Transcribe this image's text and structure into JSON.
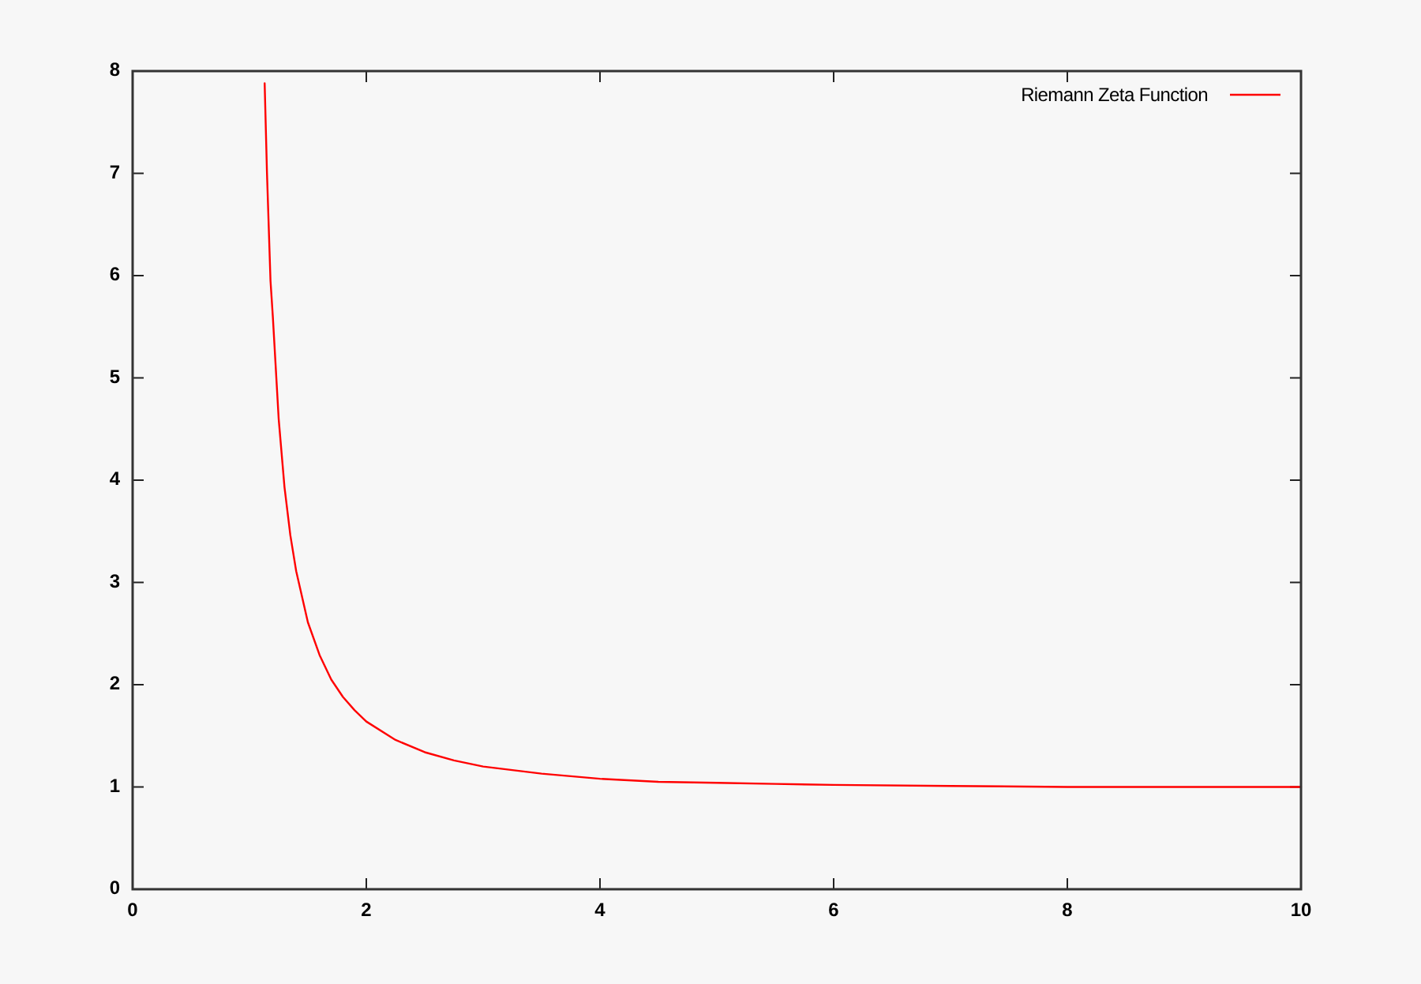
{
  "chart_data": {
    "type": "line",
    "x": [
      1.13,
      1.15,
      1.18,
      1.2,
      1.25,
      1.3,
      1.35,
      1.4,
      1.5,
      1.6,
      1.7,
      1.8,
      1.9,
      2,
      2.25,
      2.5,
      2.75,
      3,
      3.5,
      4,
      4.5,
      5,
      5.5,
      6,
      7,
      8,
      9,
      10
    ],
    "series": [
      {
        "name": "Riemann Zeta Function",
        "color": "#ff0000",
        "values": [
          7.88,
          7.0,
          5.95,
          5.6,
          4.6,
          3.93,
          3.46,
          3.11,
          2.61,
          2.29,
          2.05,
          1.88,
          1.75,
          1.64,
          1.46,
          1.34,
          1.26,
          1.2,
          1.13,
          1.08,
          1.05,
          1.04,
          1.03,
          1.02,
          1.01,
          1.0,
          1.0,
          1.0
        ]
      }
    ],
    "xlim": [
      0,
      10
    ],
    "ylim": [
      0,
      8
    ],
    "xticks": [
      0,
      2,
      4,
      6,
      8,
      10
    ],
    "yticks": [
      0,
      1,
      2,
      3,
      4,
      5,
      6,
      7,
      8
    ],
    "grid": false,
    "legend": "top right",
    "marker": "none",
    "line_style": "solid"
  }
}
